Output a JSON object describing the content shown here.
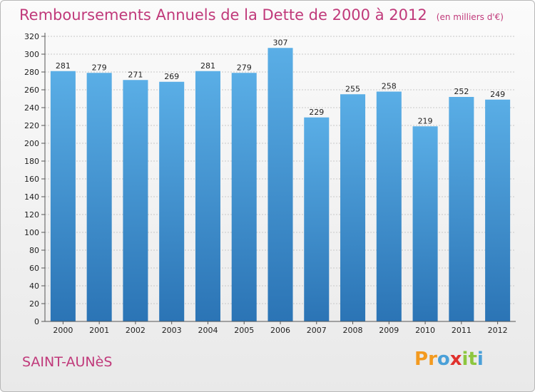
{
  "chart_data": {
    "type": "bar",
    "title": "Remboursements Annuels de la Dette de 2000 à 2012",
    "unit": "(en milliers d'€)",
    "categories": [
      "2000",
      "2001",
      "2002",
      "2003",
      "2004",
      "2005",
      "2006",
      "2007",
      "2008",
      "2009",
      "2010",
      "2011",
      "2012"
    ],
    "values": [
      281,
      279,
      271,
      269,
      281,
      279,
      307,
      229,
      255,
      258,
      219,
      252,
      249
    ],
    "ylim": [
      0,
      320
    ],
    "yticks": [
      0,
      20,
      40,
      60,
      80,
      100,
      120,
      140,
      160,
      180,
      200,
      220,
      240,
      260,
      280,
      300,
      320
    ],
    "grid": true,
    "legend": "none",
    "colors": {
      "bar_top": "#5aaee6",
      "bar_bottom": "#2b74b5",
      "title": "#c0397a"
    }
  },
  "footer": {
    "commune": "SAINT-AUNèS",
    "logo_letters": [
      "P",
      "r",
      "o",
      "x",
      "i",
      "t",
      "i"
    ],
    "logo_colors": [
      "#f39a1f",
      "#f39a1f",
      "#4aa0d8",
      "#e0312d",
      "#8dc63f",
      "#8dc63f",
      "#4aa0d8"
    ]
  }
}
